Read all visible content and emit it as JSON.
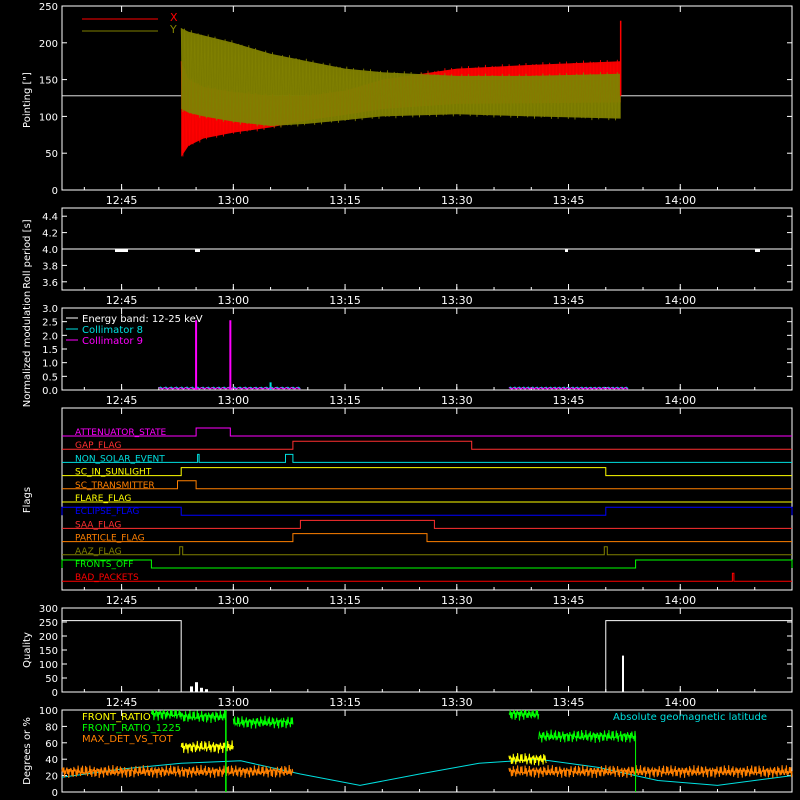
{
  "chart_data": [
    {
      "type": "line",
      "ylabel": "Pointing [\"]",
      "ylim": [
        0,
        250
      ],
      "yticks": [
        0,
        50,
        100,
        150,
        200,
        250
      ],
      "xticks": [
        "12:45",
        "13:00",
        "13:15",
        "13:30",
        "13:45",
        "14:00"
      ],
      "reference_line": 128,
      "series": [
        {
          "name": "X",
          "color": "#ff0000",
          "envelope": {
            "x": [
              "12:53",
              "12:54",
              "12:56",
              "13:00",
              "13:05",
              "13:10",
              "13:15",
              "13:20",
              "13:30",
              "13:40",
              "13:52"
            ],
            "low": [
              45,
              60,
              70,
              78,
              85,
              95,
              102,
              110,
              117,
              118,
              119
            ],
            "high": [
              175,
              150,
              140,
              133,
              128,
              128,
              135,
              150,
              165,
              170,
              175
            ]
          }
        },
        {
          "name": "Y",
          "color": "#808000",
          "envelope": {
            "x": [
              "12:53",
              "12:54",
              "12:56",
              "13:00",
              "13:05",
              "13:10",
              "13:15",
              "13:20",
              "13:30",
              "13:40",
              "13:52"
            ],
            "low": [
              110,
              105,
              100,
              93,
              87,
              90,
              95,
              100,
              103,
              100,
              97
            ],
            "high": [
              220,
              215,
              210,
              200,
              185,
              175,
              165,
              160,
              155,
              155,
              158
            ]
          }
        }
      ],
      "spike": {
        "x": "13:52",
        "value": 230
      }
    },
    {
      "type": "line",
      "ylabel": "Roll period [s]",
      "ylim": [
        3.5,
        4.5
      ],
      "yticks": [
        "3.6",
        "3.8",
        "4.0",
        "4.2",
        "4.4"
      ],
      "xticks": [
        "12:45",
        "13:00",
        "13:15",
        "13:30",
        "13:45",
        "14:00"
      ],
      "series": [
        {
          "name": "",
          "color": "#ffffff",
          "value": 4.0
        }
      ]
    },
    {
      "type": "line",
      "ylabel": "Normalized modulation",
      "ylim": [
        0,
        3.0
      ],
      "yticks": [
        "0.0",
        "0.5",
        "1.0",
        "1.5",
        "2.0",
        "2.5",
        "3.0"
      ],
      "xticks": [
        "12:45",
        "13:00",
        "13:15",
        "13:30",
        "13:45",
        "14:00"
      ],
      "annotation": "Energy band: 12-25 keV",
      "series": [
        {
          "name": "Collimator 8",
          "color": "#00e0e0",
          "segments": [
            [
              "12:50",
              "13:09"
            ],
            [
              "13:37",
              "13:53"
            ]
          ],
          "level": 0.08,
          "spikes": [
            {
              "x": "13:05",
              "value": 0.28
            }
          ]
        },
        {
          "name": "Collimator 9",
          "color": "#ff00ff",
          "segments": [
            [
              "12:50",
              "13:09"
            ],
            [
              "13:37",
              "13:53"
            ]
          ],
          "level": 0.06,
          "spikes": [
            {
              "x": "12:55",
              "value": 2.55
            },
            {
              "x": "12:59.6",
              "value": 2.55
            }
          ]
        }
      ]
    },
    {
      "type": "line",
      "ylabel": "Flags",
      "xticks": [
        "12:45",
        "13:00",
        "13:15",
        "13:30",
        "13:45",
        "14:00"
      ],
      "flags": [
        {
          "label": "ATTENUATOR_STATE",
          "color": "#ff00ff",
          "high": [
            [
              "12:55",
              "12:59.6"
            ]
          ]
        },
        {
          "label": "GAP_FLAG",
          "color": "#ff3030",
          "high": [
            [
              "13:08",
              "13:32"
            ]
          ]
        },
        {
          "label": "NON_SOLAR_EVENT",
          "color": "#00e0e0",
          "high": [
            [
              "12:55.2",
              "12:55.4"
            ],
            [
              "13:07",
              "13:08"
            ]
          ]
        },
        {
          "label": "SC_IN_SUNLIGHT",
          "color": "#ffff00",
          "high": [
            [
              "12:53",
              "13:50"
            ]
          ]
        },
        {
          "label": "SC_TRANSMITTER",
          "color": "#ff8000",
          "high": [
            [
              "12:52.5",
              "12:55"
            ]
          ]
        },
        {
          "label": "FLARE_FLAG",
          "color": "#ffff00",
          "high": []
        },
        {
          "label": "ECLIPSE_FLAG",
          "color": "#0000ff",
          "high": [
            [
              "12:37",
              "12:53"
            ],
            [
              "13:50",
              "14:15"
            ]
          ]
        },
        {
          "label": "SAA_FLAG",
          "color": "#ff3030",
          "high": [
            [
              "13:09",
              "13:27"
            ]
          ]
        },
        {
          "label": "PARTICLE_FLAG",
          "color": "#ff8000",
          "high": [
            [
              "13:08",
              "13:26"
            ]
          ]
        },
        {
          "label": "AAZ_FLAG",
          "color": "#808000",
          "high": [
            [
              "12:52.8",
              "12:53.2"
            ],
            [
              "13:49.8",
              "13:50.2"
            ]
          ]
        },
        {
          "label": "FRONTS_OFF",
          "color": "#00ff00",
          "high": [
            [
              "12:37",
              "12:49"
            ],
            [
              "13:54",
              "14:15"
            ]
          ]
        },
        {
          "label": "BAD_PACKETS",
          "color": "#ff0000",
          "high": [
            [
              "14:07",
              "14:07.2"
            ]
          ]
        }
      ]
    },
    {
      "type": "line",
      "ylabel": "Quality",
      "ylim": [
        0,
        300
      ],
      "yticks": [
        0,
        50,
        100,
        150,
        200,
        250,
        300
      ],
      "xticks": [
        "12:45",
        "13:00",
        "13:15",
        "13:30",
        "13:45",
        "14:00"
      ],
      "series": [
        {
          "name": "",
          "color": "#ffffff",
          "segments": [
            {
              "x0": "12:37",
              "x1": "12:53",
              "value": 255
            },
            {
              "x0": "13:50",
              "x1": "14:15",
              "value": 255
            }
          ]
        }
      ]
    },
    {
      "type": "line",
      "ylabel": "Degrees or %",
      "ylim": [
        0,
        100
      ],
      "yticks": [
        0,
        20,
        40,
        60,
        80,
        100
      ],
      "xticks": [
        "12:45",
        "13:00",
        "13:15",
        "13:30",
        "13:45",
        "14:00"
      ],
      "annotation": "Absolute geomagnetic latitude",
      "series": [
        {
          "name": "FRONT_RATIO",
          "color": "#ffff00",
          "segments": [
            {
              "x0": "12:53",
              "x1": "13:00",
              "value": 55
            },
            {
              "x0": "13:37",
              "x1": "13:42",
              "value": 40
            }
          ]
        },
        {
          "name": "FRONT_RATIO_1225",
          "color": "#00ff00",
          "segments": [
            {
              "x0": "12:49",
              "x1": "12:53",
              "value": 95
            },
            {
              "x0": "12:53",
              "x1": "12:59",
              "value": 92
            },
            {
              "x0": "13:00",
              "x1": "13:08",
              "value": 85
            },
            {
              "x0": "13:37",
              "x1": "13:41",
              "value": 95
            },
            {
              "x0": "13:41",
              "x1": "13:54",
              "value": 68
            }
          ]
        },
        {
          "name": "MAX_DET_VS_TOT",
          "color": "#ff8000",
          "segments": [
            {
              "x0": "12:37",
              "x1": "13:08",
              "value": 25
            },
            {
              "x0": "13:37",
              "x1": "14:15",
              "value": 25
            }
          ]
        },
        {
          "name": "",
          "color": "#00e0e0",
          "latitude": {
            "x": [
              "12:37",
              "12:45",
              "12:53",
              "13:01",
              "13:09",
              "13:17",
              "13:25",
              "13:33",
              "13:41",
              "13:49",
              "13:57",
              "14:05",
              "14:15"
            ],
            "values": [
              18,
              28,
              35,
              38,
              22,
              8,
              22,
              35,
              40,
              30,
              14,
              8,
              20
            ]
          }
        }
      ]
    }
  ]
}
